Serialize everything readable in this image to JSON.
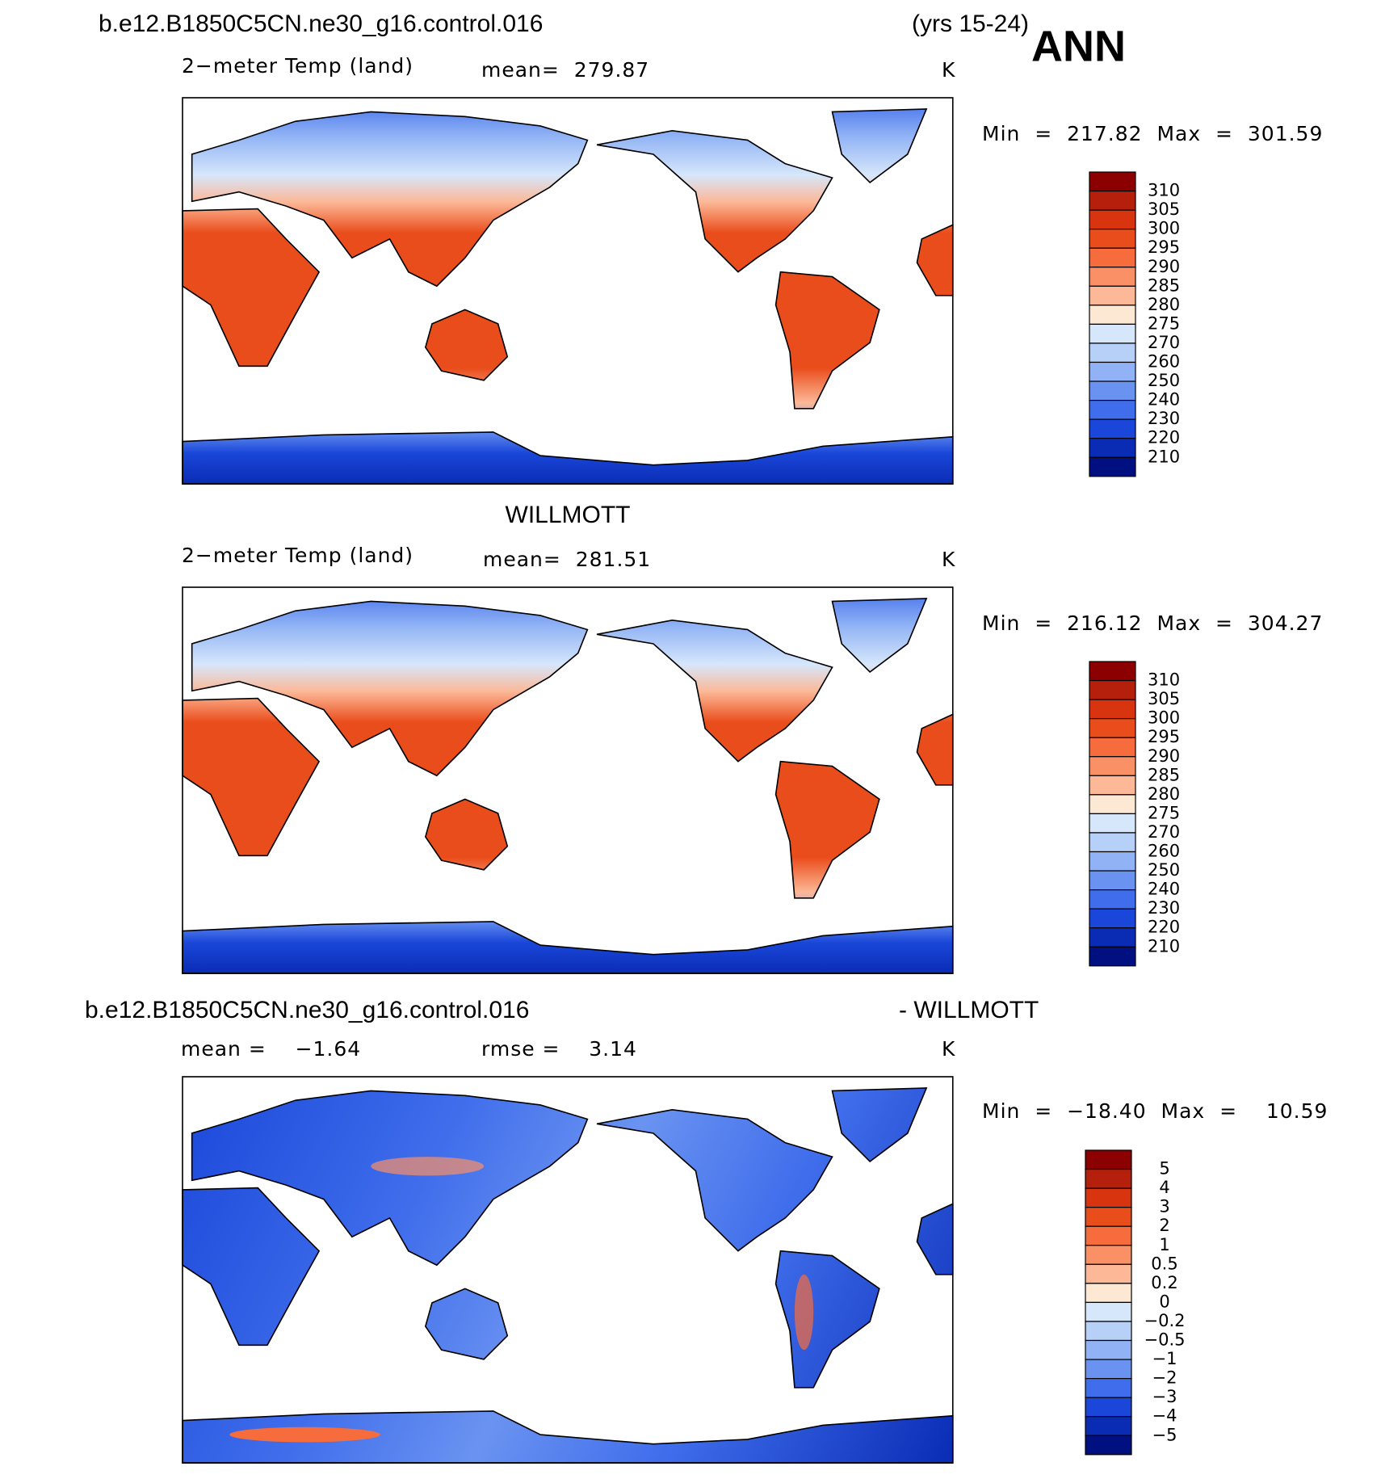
{
  "header": {
    "case": "b.e12.B1850C5CN.ne30_g16.control.016",
    "years": "(yrs 15-24)",
    "season": "ANN"
  },
  "colorbar_colors": [
    "#8b0000",
    "#b5200c",
    "#d8340f",
    "#ea4d1c",
    "#f66c3c",
    "#fa9066",
    "#fcb897",
    "#fde8d4",
    "#d6e7fb",
    "#b6d0f8",
    "#91b3f5",
    "#6a93f1",
    "#3f6deb",
    "#1a47d9",
    "#0a2cb5",
    "#001080"
  ],
  "panels": [
    {
      "variable": "2−meter Temp (land)",
      "stat": "mean=  279.87",
      "units": "K",
      "min_max": "Min  =  217.82  Max  =  301.59",
      "colorbar_labels": [
        "310",
        "305",
        "300",
        "295",
        "290",
        "285",
        "280",
        "275",
        "270",
        "260",
        "250",
        "240",
        "230",
        "220",
        "210"
      ]
    },
    {
      "title": "WILLMOTT",
      "variable": "2−meter Temp (land)",
      "stat": "mean=  281.51",
      "units": "K",
      "min_max": "Min  =  216.12  Max  =  304.27",
      "colorbar_labels": [
        "310",
        "305",
        "300",
        "295",
        "290",
        "285",
        "280",
        "275",
        "270",
        "260",
        "250",
        "240",
        "230",
        "220",
        "210"
      ]
    },
    {
      "title": "b.e12.B1850C5CN.ne30_g16.control.016",
      "title_right": "- WILLMOTT",
      "stat": "mean =    −1.64",
      "stat2": "rmse =    3.14",
      "units": "K",
      "min_max": "Min  =  −18.40  Max  =    10.59",
      "colorbar_labels": [
        "5",
        "4",
        "3",
        "2",
        "1",
        "0.5",
        "0.2",
        "0",
        "−0.2",
        "−0.5",
        "−1",
        "−2",
        "−3",
        "−4",
        "−5"
      ]
    }
  ]
}
